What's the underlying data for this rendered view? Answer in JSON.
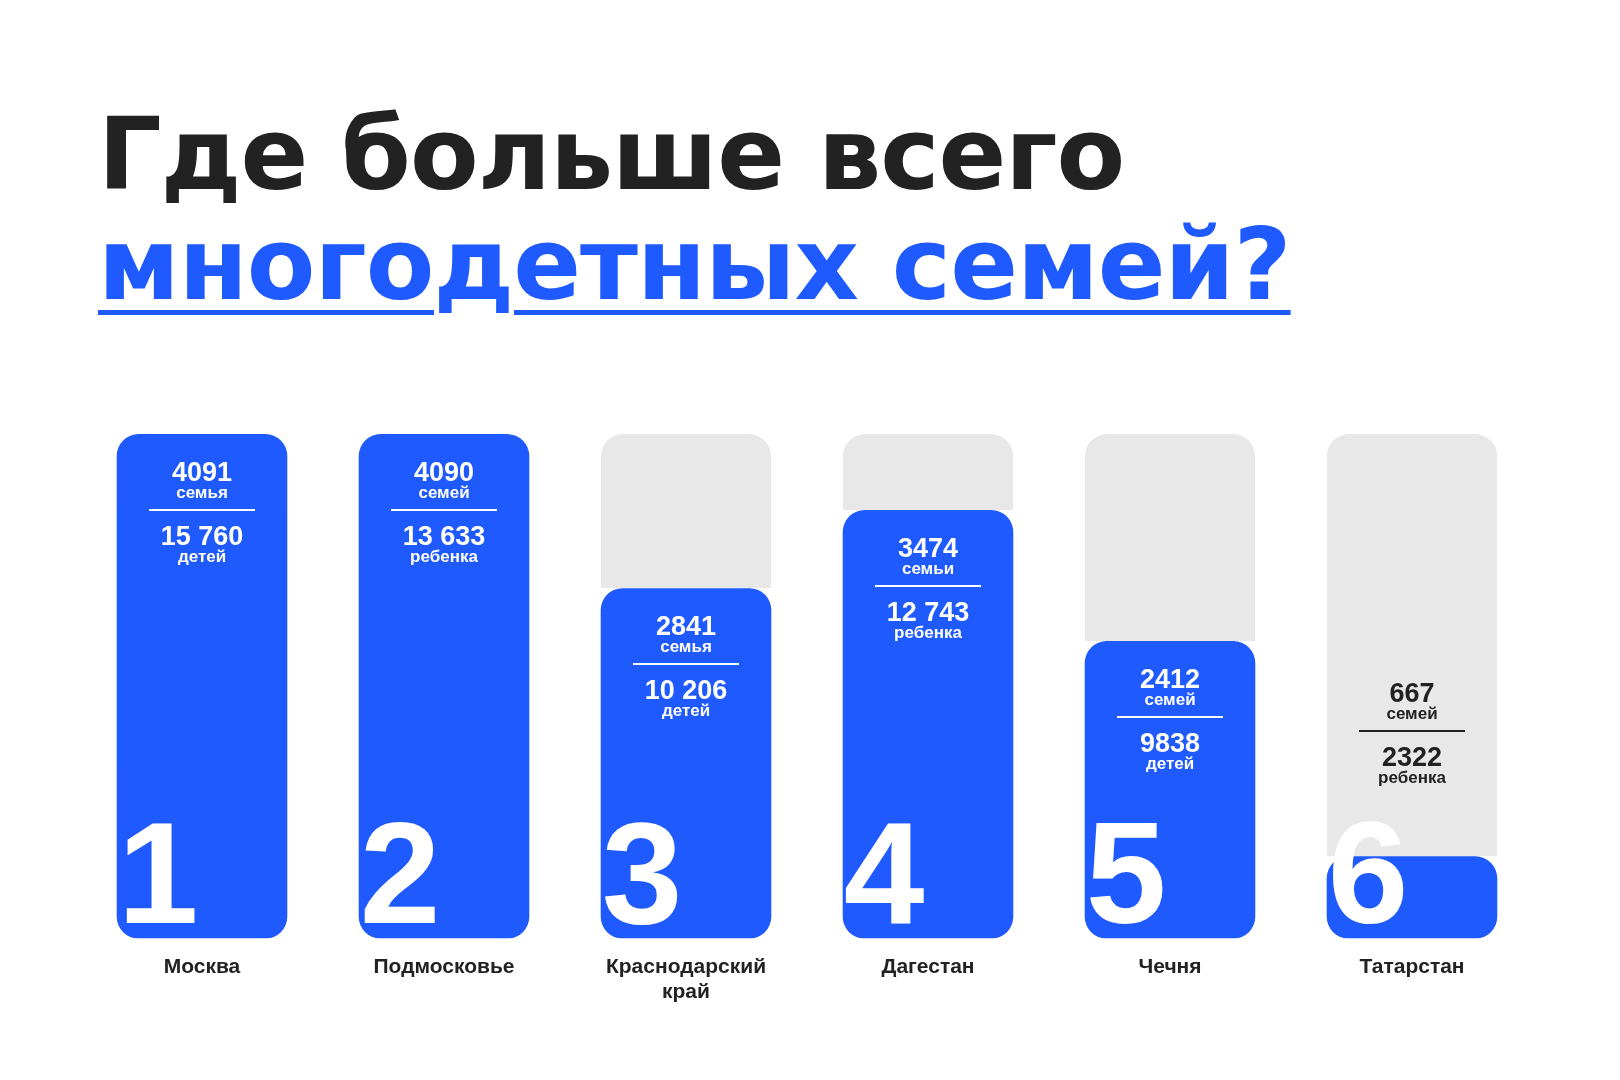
{
  "chart_data": {
    "type": "bar",
    "title": "Где больше всего\nмногодетных семей?",
    "categories": [
      "Москва",
      "Подмосковье",
      "Краснодарский край",
      "Дагестан",
      "Чечня",
      "Татарстан"
    ],
    "values": [
      4091,
      4090,
      2841,
      3474,
      2412,
      667
    ],
    "color": "#1f5aff",
    "value_labels": [
      "4091\nсемья\n15 760\nдетей",
      "4090\nсемей\n13 633\nребенка",
      "2841\nсемья\n10 206\nдетей",
      "3474\nсемьи\n12 743\nребенка",
      "2412\nсемей\n9838\nдетей",
      "667\nсемей\n2322\nребенка"
    ],
    "annotations": [
      "1",
      "2",
      "3",
      "4",
      "5",
      "6"
    ],
    "tick_labels": "x"
  }
}
